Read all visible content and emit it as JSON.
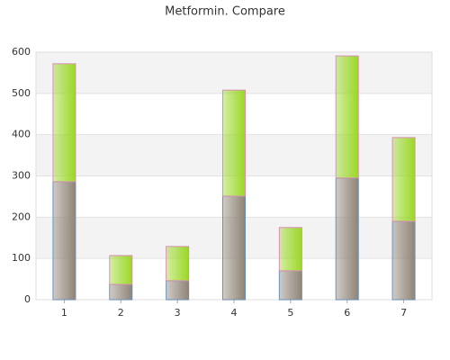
{
  "chart_data": {
    "type": "stacked-bar",
    "title": "Metformin. Compare",
    "categories": [
      "1",
      "2",
      "3",
      "4",
      "5",
      "6",
      "7"
    ],
    "series": [
      {
        "color": "#8f8477",
        "values": [
          286,
          37,
          46,
          251,
          70,
          295,
          190
        ]
      },
      {
        "color": "#9ad825",
        "values": [
          286,
          70,
          83,
          257,
          105,
          296,
          203
        ]
      }
    ],
    "ylim": [
      0,
      600
    ],
    "yticks": [
      0,
      100,
      200,
      300,
      400,
      500,
      600
    ],
    "grid": true
  }
}
